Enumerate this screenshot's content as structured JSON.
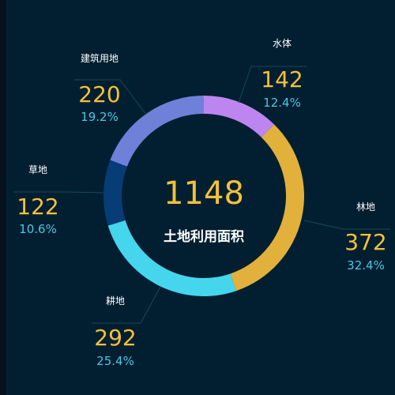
{
  "chart_data": {
    "type": "pie",
    "donut": true,
    "total": 1148,
    "center_label": "土地利用面积",
    "slices": [
      {
        "name": "水体",
        "value": 142,
        "percent": "12.4%",
        "color": "#bd85f0"
      },
      {
        "name": "林地",
        "value": 372,
        "percent": "32.4%",
        "color": "#e1b13c"
      },
      {
        "name": "耕地",
        "value": 292,
        "percent": "25.4%",
        "color": "#45d6ee"
      },
      {
        "name": "草地",
        "value": 122,
        "percent": "10.6%",
        "color": "#073d76"
      },
      {
        "name": "建筑用地",
        "value": 220,
        "percent": "19.2%",
        "color": "#6f80d9"
      }
    ]
  },
  "colors": {
    "background": "#021f31",
    "value_text": "#f4c13a",
    "percent_text": "#4cc6e3",
    "name_text": "#ffffff",
    "leader_line": "#17475c"
  }
}
